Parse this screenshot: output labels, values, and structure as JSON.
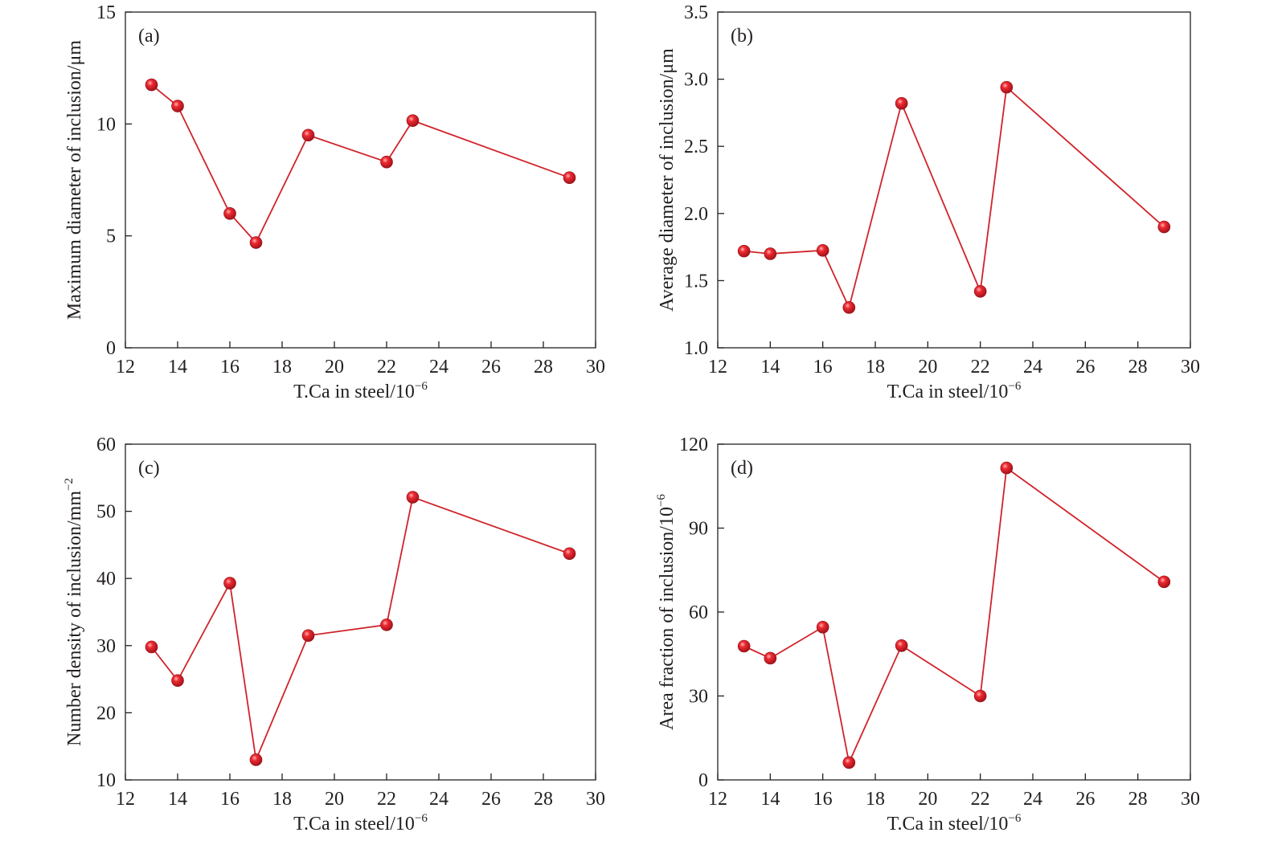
{
  "colors": {
    "line": "#d0232a",
    "marker": "#e4242c",
    "marker_highlight": "#ff9a9a",
    "axis": "#231f20"
  },
  "chart_data": [
    {
      "type": "line",
      "panel_label": "(a)",
      "xlabel": "T.Ca in steel/10",
      "xlabel_sup": "−6",
      "ylabel": "Maximum diameter of inclusion/μm",
      "ylabel_sup": "",
      "xlim": [
        12,
        30
      ],
      "ylim": [
        0,
        15
      ],
      "xticks": [
        12,
        14,
        16,
        18,
        20,
        22,
        24,
        26,
        28,
        30
      ],
      "yticks": [
        0,
        5,
        10,
        15
      ],
      "yticks_text": [
        "0",
        "5",
        "10",
        "15"
      ],
      "x": [
        13,
        14,
        16,
        17,
        19,
        22,
        23,
        29
      ],
      "y": [
        11.75,
        10.8,
        6.0,
        4.7,
        9.5,
        8.3,
        10.15,
        7.6
      ]
    },
    {
      "type": "line",
      "panel_label": "(b)",
      "xlabel": "T.Ca in steel/10",
      "xlabel_sup": "−6",
      "ylabel": "Average diameter of inclusion/μm",
      "ylabel_sup": "",
      "xlim": [
        12,
        30
      ],
      "ylim": [
        1.0,
        3.5
      ],
      "xticks": [
        12,
        14,
        16,
        18,
        20,
        22,
        24,
        26,
        28,
        30
      ],
      "yticks": [
        1.0,
        1.5,
        2.0,
        2.5,
        3.0,
        3.5
      ],
      "yticks_text": [
        "1.0",
        "1.5",
        "2.0",
        "2.5",
        "3.0",
        "3.5"
      ],
      "x": [
        13,
        14,
        16,
        17,
        19,
        22,
        23,
        29
      ],
      "y": [
        1.72,
        1.7,
        1.725,
        1.3,
        2.82,
        1.42,
        2.94,
        1.9
      ]
    },
    {
      "type": "line",
      "panel_label": "(c)",
      "xlabel": "T.Ca in steel/10",
      "xlabel_sup": "−6",
      "ylabel": "Number density of inclusion/mm",
      "ylabel_sup": "−2",
      "xlim": [
        12,
        30
      ],
      "ylim": [
        10,
        60
      ],
      "xticks": [
        12,
        14,
        16,
        18,
        20,
        22,
        24,
        26,
        28,
        30
      ],
      "yticks": [
        10,
        20,
        30,
        40,
        50,
        60
      ],
      "yticks_text": [
        "10",
        "20",
        "30",
        "40",
        "50",
        "60"
      ],
      "x": [
        13,
        14,
        16,
        17,
        19,
        22,
        23,
        29
      ],
      "y": [
        29.8,
        24.8,
        39.3,
        13.0,
        31.5,
        33.1,
        52.1,
        43.7
      ]
    },
    {
      "type": "line",
      "panel_label": "(d)",
      "xlabel": "T.Ca in steel/10",
      "xlabel_sup": "−6",
      "ylabel": "Area fraction of inclusion/10",
      "ylabel_sup": "−6",
      "xlim": [
        12,
        30
      ],
      "ylim": [
        0,
        120
      ],
      "xticks": [
        12,
        14,
        16,
        18,
        20,
        22,
        24,
        26,
        28,
        30
      ],
      "yticks": [
        0,
        30,
        60,
        90,
        120
      ],
      "yticks_text": [
        "0",
        "30",
        "60",
        "90",
        "120"
      ],
      "x": [
        13,
        14,
        16,
        17,
        19,
        22,
        23,
        29
      ],
      "y": [
        47.8,
        43.5,
        54.6,
        6.2,
        48.0,
        30.0,
        111.5,
        70.8
      ]
    }
  ]
}
